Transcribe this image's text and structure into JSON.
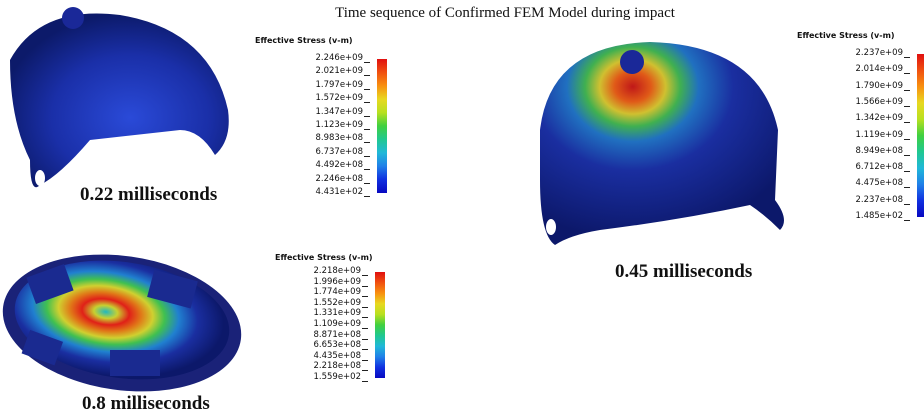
{
  "title": "Time sequence of Confirmed FEM Model during impact",
  "panels": [
    {
      "caption": "0.22 milliseconds",
      "legend_title": "Effective Stress (v-m)",
      "legend_labels": [
        "2.246e+09",
        "2.021e+09",
        "1.797e+09",
        "1.572e+09",
        "1.347e+09",
        "1.123e+09",
        "8.983e+08",
        "6.737e+08",
        "4.492e+08",
        "2.246e+08",
        "4.431e+02"
      ]
    },
    {
      "caption": "0.45 milliseconds",
      "legend_title": "Effective Stress (v-m)",
      "legend_labels": [
        "2.237e+09",
        "2.014e+09",
        "1.790e+09",
        "1.566e+09",
        "1.342e+09",
        "1.119e+09",
        "8.949e+08",
        "6.712e+08",
        "4.475e+08",
        "2.237e+08",
        "1.485e+02"
      ]
    },
    {
      "caption": "0.8 milliseconds",
      "legend_title": "Effective Stress (v-m)",
      "legend_labels": [
        "2.218e+09",
        "1.996e+09",
        "1.774e+09",
        "1.552e+09",
        "1.331e+09",
        "1.109e+09",
        "8.871e+08",
        "6.653e+08",
        "4.435e+08",
        "2.218e+08",
        "1.559e+02"
      ]
    }
  ]
}
